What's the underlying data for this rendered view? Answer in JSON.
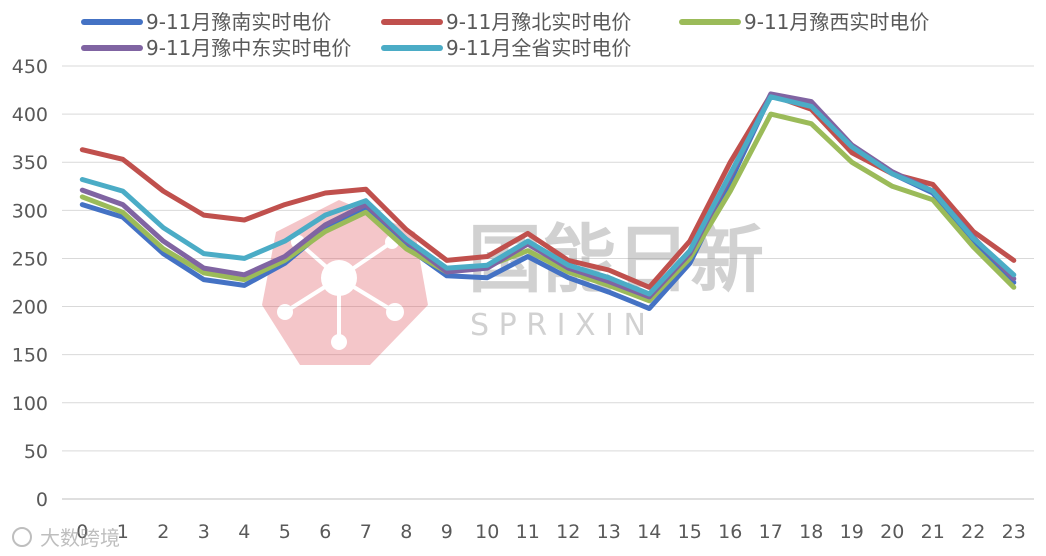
{
  "chart_data": {
    "type": "line",
    "x": [
      0,
      1,
      2,
      3,
      4,
      5,
      6,
      7,
      8,
      9,
      10,
      11,
      12,
      13,
      14,
      15,
      16,
      17,
      18,
      19,
      20,
      21,
      22,
      23
    ],
    "ylim": [
      0,
      450
    ],
    "yticks": [
      0,
      50,
      100,
      150,
      200,
      250,
      300,
      350,
      400,
      450
    ],
    "grid": true,
    "legend_position": "top",
    "series": [
      {
        "name": "9-11月豫南实时电价",
        "color": "#4472C4",
        "values": [
          306,
          293,
          255,
          228,
          222,
          245,
          280,
          302,
          262,
          232,
          230,
          252,
          230,
          215,
          198,
          245,
          330,
          420,
          410,
          365,
          338,
          318,
          268,
          225
        ]
      },
      {
        "name": "9-11月豫北实时电价",
        "color": "#C0504D",
        "values": [
          363,
          353,
          320,
          295,
          290,
          306,
          318,
          322,
          280,
          248,
          252,
          276,
          248,
          238,
          220,
          268,
          350,
          420,
          405,
          360,
          338,
          327,
          278,
          248
        ]
      },
      {
        "name": "9-11月豫西实时电价",
        "color": "#9BBB59",
        "values": [
          314,
          298,
          260,
          235,
          228,
          248,
          278,
          298,
          260,
          236,
          242,
          258,
          236,
          222,
          206,
          250,
          320,
          400,
          390,
          350,
          325,
          311,
          262,
          220
        ]
      },
      {
        "name": "9-11月豫中东实时电价",
        "color": "#8064A2",
        "values": [
          321,
          306,
          268,
          240,
          233,
          252,
          285,
          306,
          268,
          236,
          240,
          265,
          240,
          226,
          210,
          255,
          335,
          421,
          413,
          368,
          340,
          320,
          272,
          229
        ]
      },
      {
        "name": "9-11月全省实时电价",
        "color": "#4BACC6",
        "values": [
          332,
          320,
          282,
          255,
          250,
          268,
          295,
          310,
          270,
          240,
          243,
          268,
          243,
          230,
          213,
          258,
          338,
          418,
          408,
          366,
          338,
          320,
          271,
          233
        ]
      }
    ]
  },
  "watermark": {
    "title": "国能日新",
    "subtitle": "S P R I X I N",
    "corner_brand": "大数跨境"
  }
}
